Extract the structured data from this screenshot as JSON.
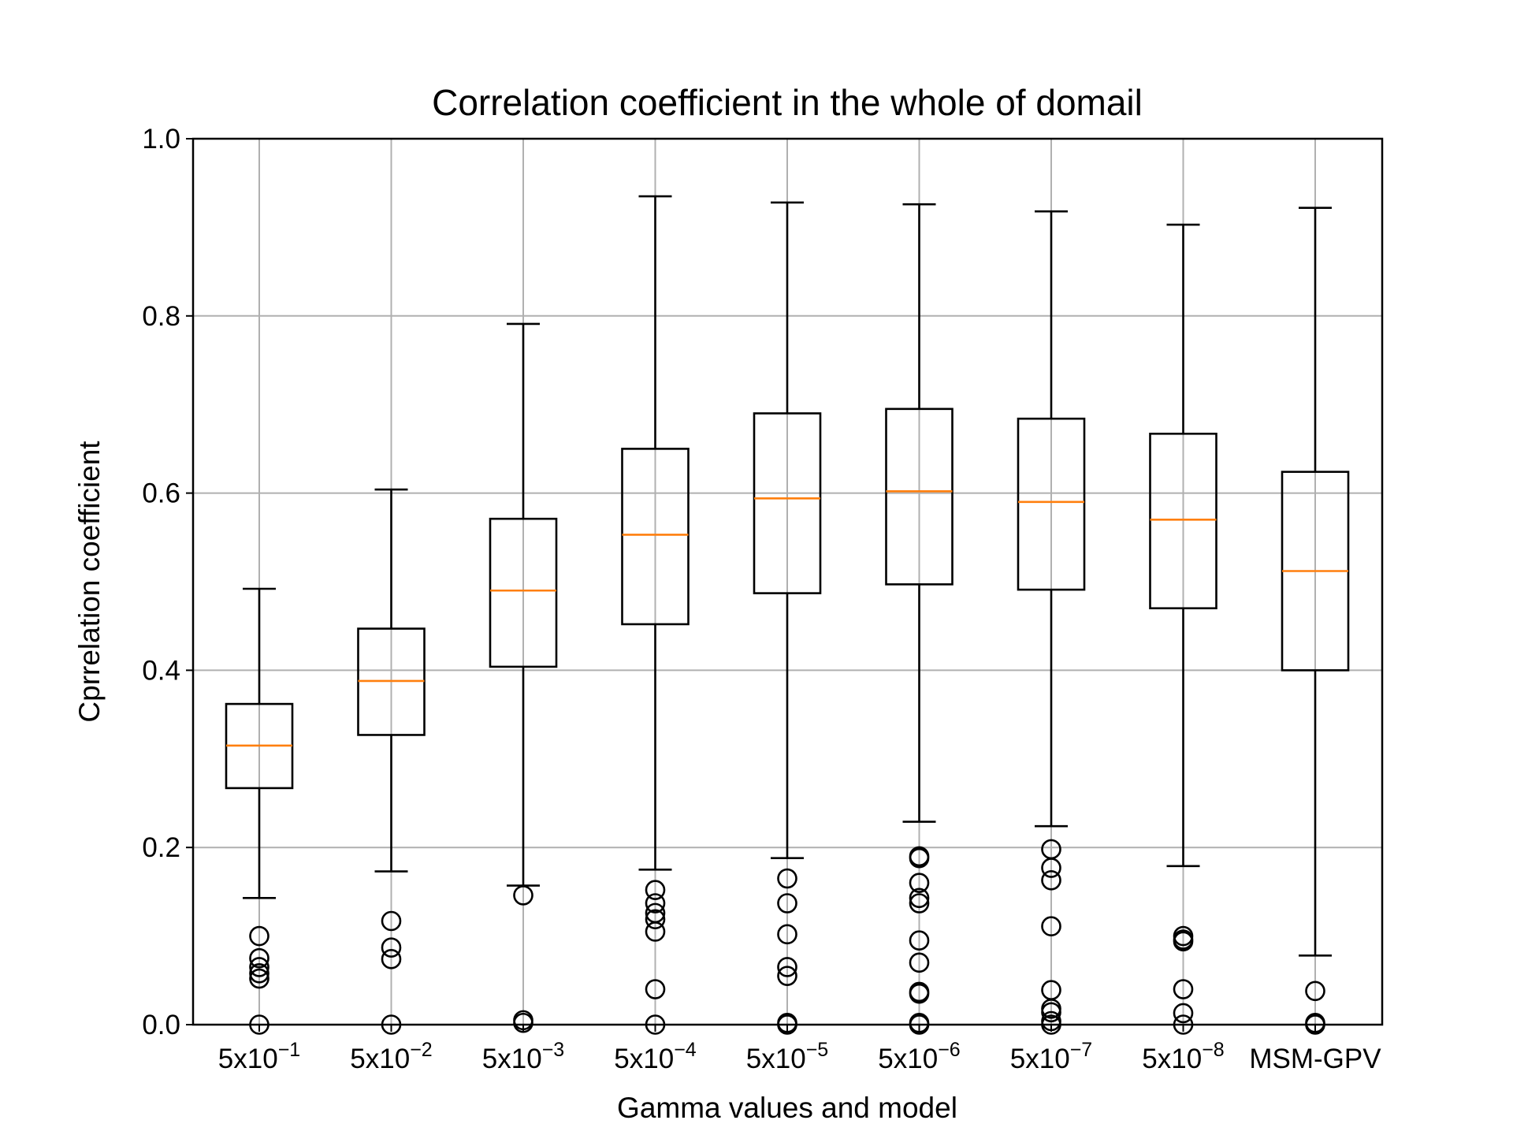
{
  "chart_data": {
    "type": "box",
    "title": "Correlation coefficient in the whole of domail",
    "xlabel": "Gamma values and model",
    "ylabel": "Cprrelation coefficient",
    "ylim": [
      0.0,
      1.0
    ],
    "yticks": [
      "0.0",
      "0.2",
      "0.4",
      "0.6",
      "0.8",
      "1.0"
    ],
    "grid": true,
    "colors": {
      "box": "#000000",
      "median": "#ff7f0e",
      "grid": "#b0b0b0"
    },
    "categories": [
      {
        "base": "5x10",
        "exp": "−1"
      },
      {
        "base": "5x10",
        "exp": "−2"
      },
      {
        "base": "5x10",
        "exp": "−3"
      },
      {
        "base": "5x10",
        "exp": "−4"
      },
      {
        "base": "5x10",
        "exp": "−5"
      },
      {
        "base": "5x10",
        "exp": "−6"
      },
      {
        "base": "5x10",
        "exp": "−7"
      },
      {
        "base": "5x10",
        "exp": "−8"
      },
      {
        "base": "MSM-GPV",
        "exp": ""
      }
    ],
    "boxes": [
      {
        "whisker_low": 0.143,
        "q1": 0.267,
        "median": 0.315,
        "q3": 0.362,
        "whisker_high": 0.492,
        "outliers": [
          0.1,
          0.075,
          0.065,
          0.058,
          0.052,
          0.0
        ]
      },
      {
        "whisker_low": 0.173,
        "q1": 0.327,
        "median": 0.388,
        "q3": 0.447,
        "whisker_high": 0.604,
        "outliers": [
          0.117,
          0.087,
          0.074,
          0.0
        ]
      },
      {
        "whisker_low": 0.157,
        "q1": 0.404,
        "median": 0.49,
        "q3": 0.571,
        "whisker_high": 0.791,
        "outliers": [
          0.146,
          0.005,
          0.002
        ]
      },
      {
        "whisker_low": 0.175,
        "q1": 0.452,
        "median": 0.553,
        "q3": 0.65,
        "whisker_high": 0.935,
        "outliers": [
          0.152,
          0.137,
          0.126,
          0.119,
          0.105,
          0.04,
          0.0
        ]
      },
      {
        "whisker_low": 0.188,
        "q1": 0.487,
        "median": 0.594,
        "q3": 0.69,
        "whisker_high": 0.928,
        "outliers": [
          0.165,
          0.137,
          0.102,
          0.065,
          0.055,
          0.002,
          0.0
        ]
      },
      {
        "whisker_low": 0.229,
        "q1": 0.497,
        "median": 0.602,
        "q3": 0.695,
        "whisker_high": 0.926,
        "outliers": [
          0.19,
          0.188,
          0.16,
          0.143,
          0.137,
          0.095,
          0.07,
          0.037,
          0.035,
          0.002,
          0.0
        ]
      },
      {
        "whisker_low": 0.224,
        "q1": 0.491,
        "median": 0.59,
        "q3": 0.684,
        "whisker_high": 0.918,
        "outliers": [
          0.198,
          0.177,
          0.163,
          0.111,
          0.039,
          0.018,
          0.014,
          0.004,
          0.0
        ]
      },
      {
        "whisker_low": 0.179,
        "q1": 0.47,
        "median": 0.57,
        "q3": 0.667,
        "whisker_high": 0.903,
        "outliers": [
          0.1,
          0.096,
          0.094,
          0.04,
          0.013,
          0.0
        ]
      },
      {
        "whisker_low": 0.078,
        "q1": 0.4,
        "median": 0.512,
        "q3": 0.624,
        "whisker_high": 0.922,
        "outliers": [
          0.038,
          0.002,
          0.0
        ]
      }
    ]
  }
}
